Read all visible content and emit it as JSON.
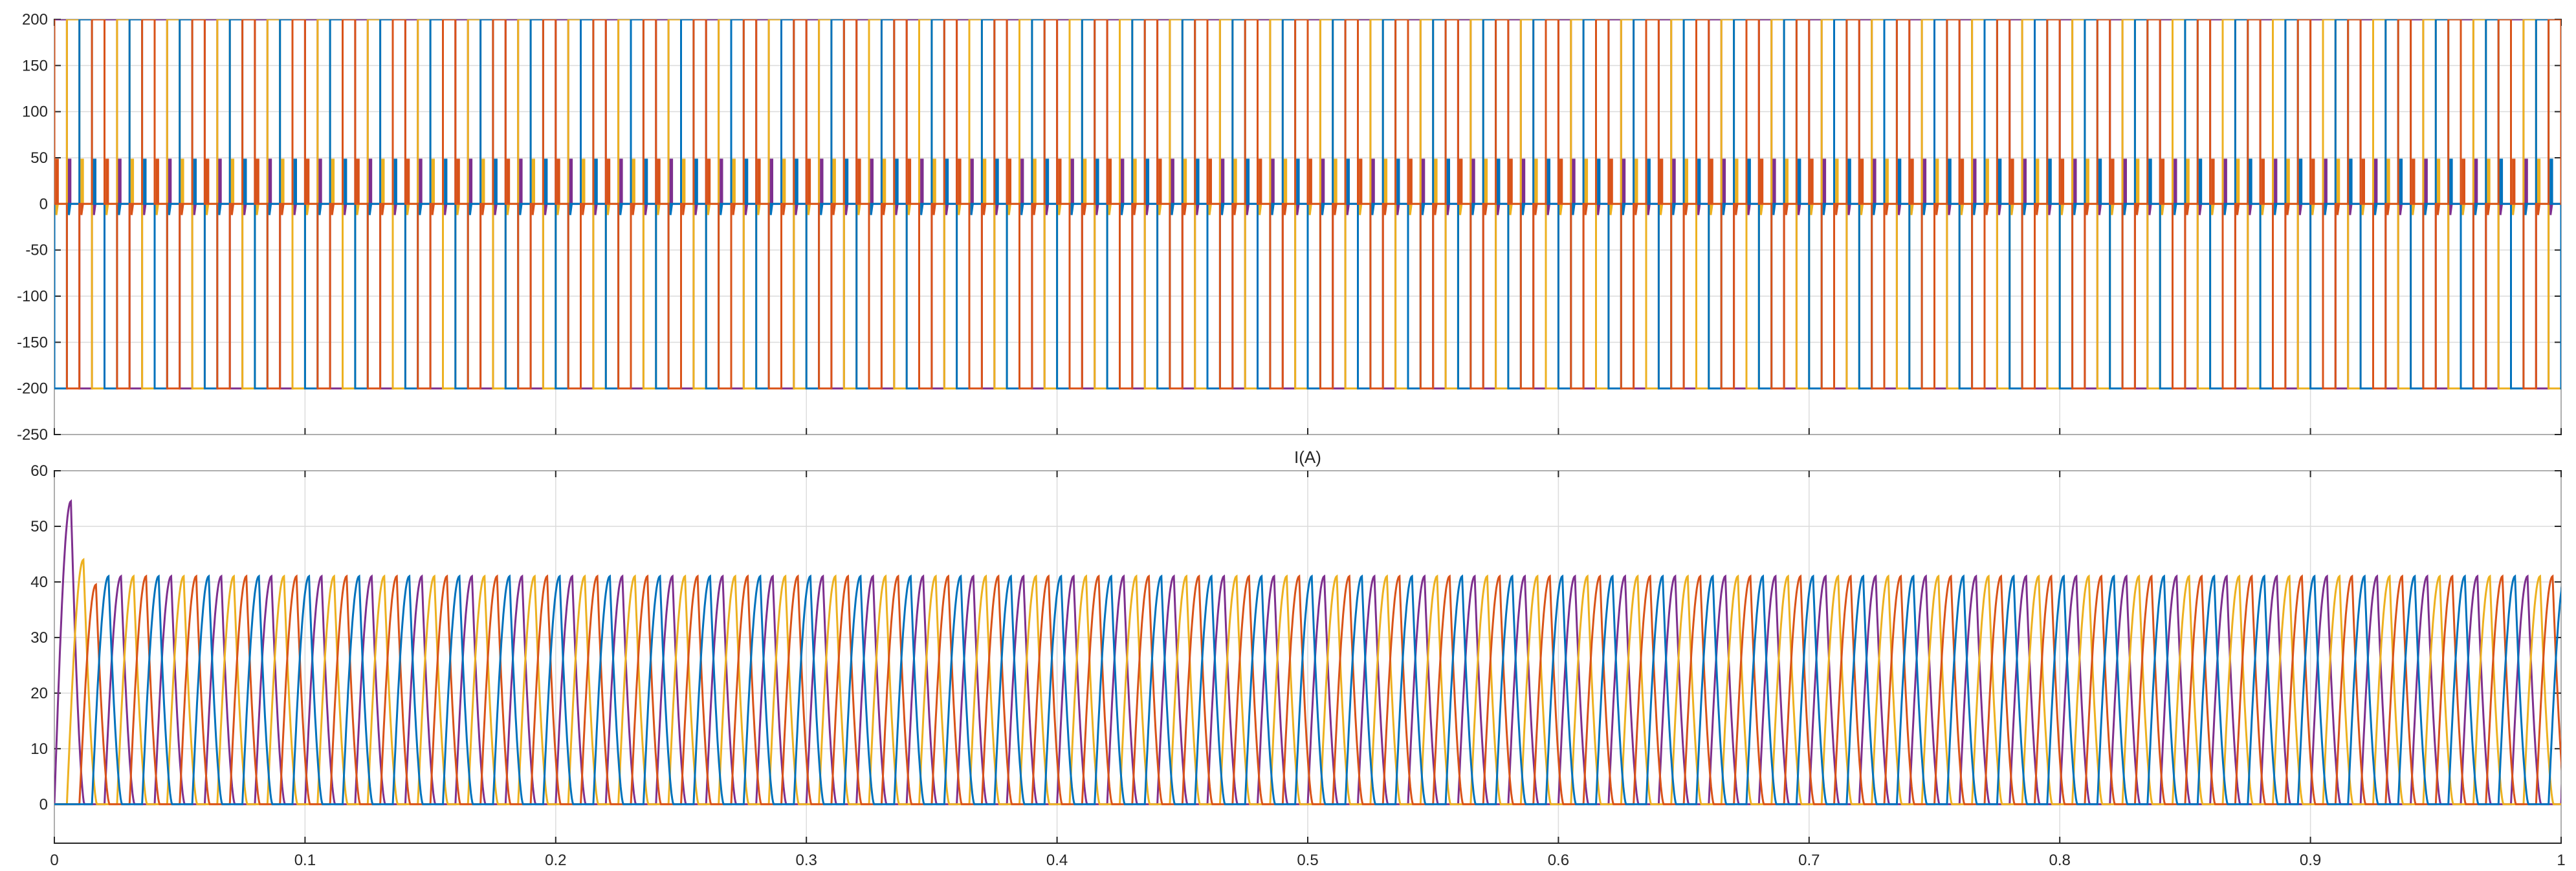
{
  "chart_data": [
    {
      "type": "line",
      "title": "",
      "xlabel": "",
      "ylabel": "",
      "xlim": [
        0,
        1
      ],
      "ylim": [
        -250,
        200
      ],
      "yticks": [
        -250,
        -200,
        -150,
        -100,
        -50,
        0,
        50,
        100,
        150,
        200
      ],
      "xticks": [
        0,
        0.1,
        0.2,
        0.3,
        0.4,
        0.5,
        0.6,
        0.7,
        0.8,
        0.9,
        1
      ],
      "grid": true,
      "legend": "none",
      "signal": {
        "kind": "phase-voltage square wave",
        "high": 200,
        "low": -200,
        "blip": 48,
        "period": 0.02,
        "phase_count": 4,
        "phase_shift": 0.005
      },
      "series": [
        {
          "color": "#7E2F8E",
          "phase_index": 0
        },
        {
          "color": "#EDB120",
          "phase_index": 1
        },
        {
          "color": "#0072BD",
          "phase_index": 2
        },
        {
          "color": "#D95319",
          "phase_index": 3
        }
      ]
    },
    {
      "type": "line",
      "title": "I(A)",
      "xlabel": "",
      "ylabel": "",
      "xlim": [
        0,
        1
      ],
      "ylim": [
        -7,
        60
      ],
      "yticks": [
        0,
        10,
        20,
        30,
        40,
        50,
        60
      ],
      "xticks": [
        0,
        0.1,
        0.2,
        0.3,
        0.4,
        0.5,
        0.6,
        0.7,
        0.8,
        0.9,
        1
      ],
      "grid": true,
      "legend": "none",
      "signal": {
        "kind": "phase current pulses",
        "steady_peak": 41,
        "startup_peaks": [
          54.5,
          44,
          39.5
        ],
        "pulse_width": 0.012,
        "period": 0.02,
        "phase_count": 4,
        "phase_shift": 0.005
      },
      "series": [
        {
          "color": "#7E2F8E",
          "phase_index": 0
        },
        {
          "color": "#EDB120",
          "phase_index": 1
        },
        {
          "color": "#D95319",
          "phase_index": 2
        },
        {
          "color": "#0072BD",
          "phase_index": 3
        }
      ]
    }
  ]
}
